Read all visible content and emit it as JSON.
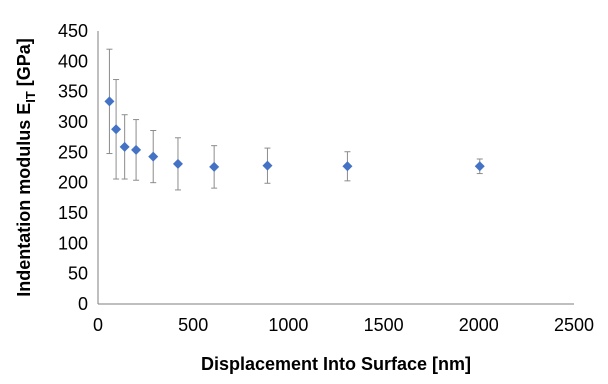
{
  "chart_data": {
    "type": "scatter",
    "xlabel": "Displacement Into Surface [nm]",
    "ylabel_main": "Indentation modulus E",
    "ylabel_sub": "IT",
    "ylabel_unit": " [GPa]",
    "xlim": [
      0,
      2500
    ],
    "ylim": [
      0,
      450
    ],
    "x_ticks": [
      0,
      500,
      1000,
      1500,
      2000,
      2500
    ],
    "y_ticks": [
      0,
      50,
      100,
      150,
      200,
      250,
      300,
      350,
      400,
      450
    ],
    "grid": false,
    "marker_color": "#4472c4",
    "errorbar_color": "#8c8c8c",
    "points": [
      {
        "x": 60,
        "y": 334,
        "err": 86
      },
      {
        "x": 95,
        "y": 288,
        "err": 82
      },
      {
        "x": 140,
        "y": 259,
        "err": 53
      },
      {
        "x": 200,
        "y": 254,
        "err": 50
      },
      {
        "x": 290,
        "y": 243,
        "err": 43
      },
      {
        "x": 420,
        "y": 231,
        "err": 43
      },
      {
        "x": 610,
        "y": 226,
        "err": 35
      },
      {
        "x": 890,
        "y": 228,
        "err": 29
      },
      {
        "x": 1310,
        "y": 227,
        "err": 24
      },
      {
        "x": 2005,
        "y": 227,
        "err": 12
      }
    ]
  }
}
